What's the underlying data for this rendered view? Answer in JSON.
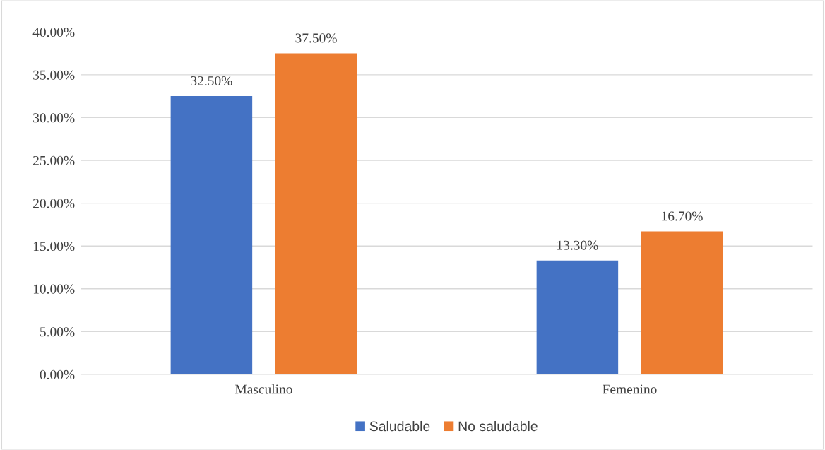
{
  "chart_data": {
    "type": "bar",
    "categories": [
      "Masculino",
      "Femenino"
    ],
    "series": [
      {
        "name": "Saludable",
        "color": "#4472c4",
        "values": [
          32.5,
          13.3
        ],
        "value_labels": [
          "32.50%",
          "13.30%"
        ]
      },
      {
        "name": "No saludable",
        "color": "#ed7d31",
        "values": [
          37.5,
          16.7
        ],
        "value_labels": [
          "37.50%",
          "16.70%"
        ]
      }
    ],
    "ylim": [
      0,
      40
    ],
    "yticks": [
      {
        "value": 0,
        "label": "0.00%"
      },
      {
        "value": 5,
        "label": "5.00%"
      },
      {
        "value": 10,
        "label": "10.00%"
      },
      {
        "value": 15,
        "label": "15.00%"
      },
      {
        "value": 20,
        "label": "20.00%"
      },
      {
        "value": 25,
        "label": "25.00%"
      },
      {
        "value": 30,
        "label": "30.00%"
      },
      {
        "value": 35,
        "label": "35.00%"
      },
      {
        "value": 40,
        "label": "40.00%"
      }
    ],
    "grid": "y",
    "legend": "bottom"
  }
}
